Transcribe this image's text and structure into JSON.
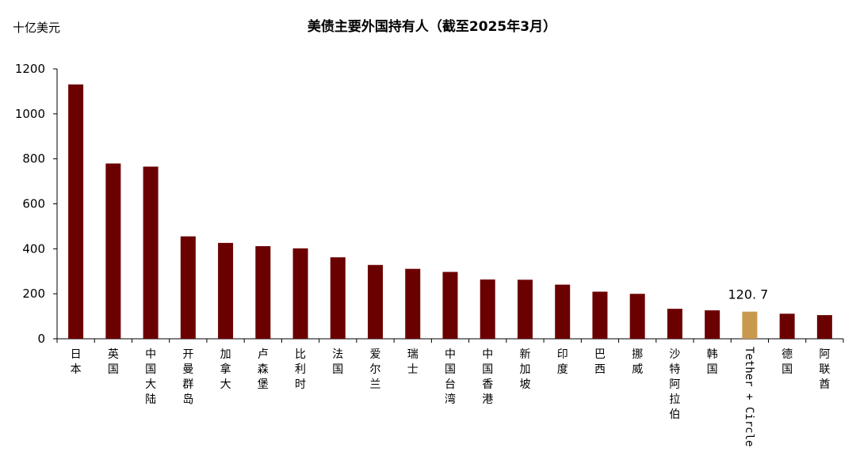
{
  "chart_data": {
    "type": "bar",
    "title": "美债主要外国持有人（截至2025年3月）",
    "unit_label": "十亿美元",
    "ylim": [
      0,
      1200
    ],
    "yticks": [
      0,
      200,
      400,
      600,
      800,
      1000,
      1200
    ],
    "categories": [
      "日本",
      "英国",
      "中国大陆",
      "开曼群岛",
      "加拿大",
      "卢森堡",
      "比利时",
      "法国",
      "爱尔兰",
      "瑞士",
      "中国台湾",
      "中国香港",
      "新加坡",
      "印度",
      "巴西",
      "挪威",
      "沙特阿拉伯",
      "韩国",
      "Tether + Circle",
      "德国",
      "阿联酋"
    ],
    "values": [
      1130.8,
      779.3,
      765.4,
      455.3,
      426.2,
      411.8,
      402.1,
      362.1,
      328.2,
      310.9,
      297.2,
      263.4,
      262.5,
      240.7,
      209.4,
      199.8,
      133.3,
      126.4,
      120.7,
      111.4,
      105.2
    ],
    "highlight_index": 18,
    "highlight_label": "120. 7",
    "colors": {
      "bar": "#6b0000",
      "highlight": "#c9984f"
    },
    "grid": false
  }
}
